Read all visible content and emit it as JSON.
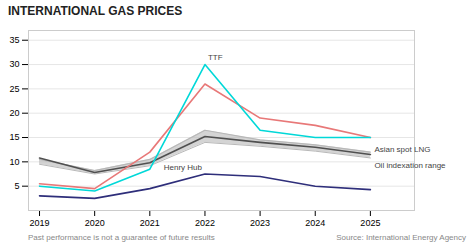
{
  "chart_data": {
    "type": "line",
    "title": "INTERNATIONAL GAS PRICES",
    "x": [
      2019,
      2020,
      2021,
      2022,
      2023,
      2024,
      2025
    ],
    "series": [
      {
        "name": "Oil indexation range",
        "type": "area",
        "color": "#b8b8b8",
        "lower": [
          9.5,
          7.5,
          9.2,
          14.0,
          13.2,
          12.2,
          10.8
        ],
        "upper": [
          10.5,
          8.2,
          10.5,
          16.5,
          14.5,
          13.5,
          12.0
        ]
      },
      {
        "name": "Asian spot LNG",
        "color": "#505050",
        "values": [
          10.8,
          7.8,
          9.8,
          15.2,
          14.0,
          13.0,
          11.5
        ]
      },
      {
        "name": "Henry Hub",
        "color": "#2e2e7a",
        "values": [
          3.0,
          2.5,
          4.5,
          7.5,
          7.0,
          5.0,
          4.3
        ]
      },
      {
        "color": "#e87878",
        "values": [
          5.5,
          4.5,
          12.0,
          26.0,
          19.0,
          17.5,
          15.0
        ]
      },
      {
        "name": "TTF",
        "color": "#00d8d8",
        "values": [
          5.0,
          4.0,
          8.5,
          30.0,
          16.5,
          15.0,
          15.0
        ]
      }
    ],
    "xlim": [
      2018.8,
      2025.8
    ],
    "xticks": [
      2019,
      2020,
      2021,
      2022,
      2023,
      2024,
      2025
    ],
    "ylim": [
      0,
      37
    ],
    "yticks": [
      5,
      10,
      15,
      20,
      25,
      30,
      35
    ],
    "grid": true,
    "footnotes": [
      "Past performance is not a guarantee of future results",
      "Source: International Energy Agency"
    ]
  }
}
